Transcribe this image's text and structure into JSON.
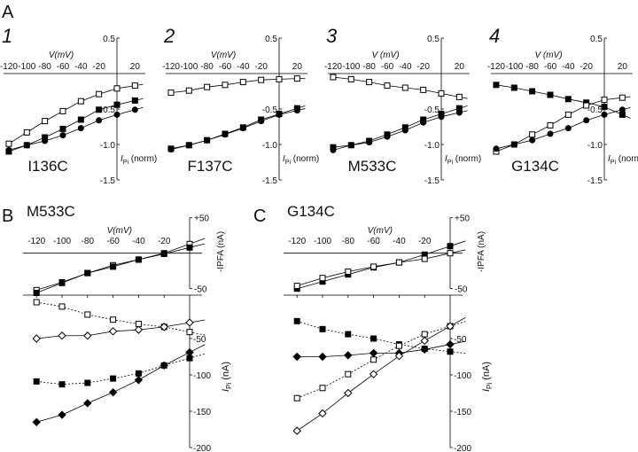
{
  "figure": {
    "panel_letters": {
      "A": "A",
      "B": "B",
      "C": "C"
    },
    "marker_legend_note": ""
  },
  "chart_data": [
    {
      "id": "A1",
      "panel_number": "1",
      "type": "line",
      "title": "I136C",
      "xlabel": "V(mV)",
      "ylabel": "I",
      "ylabel_sub": "Pi",
      "ylabel_unit": " (norm)",
      "x": [
        -120,
        -100,
        -80,
        -60,
        -40,
        -20,
        0,
        20
      ],
      "xtick_labels": [
        "-120",
        "-100",
        "-80",
        "-60",
        "-40",
        "-20",
        "20"
      ],
      "xtick_values": [
        -120,
        -100,
        -80,
        -60,
        -40,
        -20,
        20
      ],
      "ytick_labels": [
        "0.5",
        "-0.5",
        "-1.0",
        "-1.5"
      ],
      "ytick_values": [
        0.5,
        -0.5,
        -1.0,
        -1.5
      ],
      "ylim": [
        -1.5,
        0.5
      ],
      "series": [
        {
          "marker": "open-square",
          "line": "solid",
          "values": [
            -0.99,
            -0.83,
            -0.67,
            -0.53,
            -0.39,
            -0.29,
            -0.21,
            -0.17
          ]
        },
        {
          "marker": "filled-square",
          "line": "solid",
          "values": [
            -1.1,
            -1.01,
            -0.9,
            -0.78,
            -0.65,
            -0.51,
            -0.44,
            -0.38
          ]
        },
        {
          "marker": "filled-circle",
          "line": "solid",
          "values": [
            -1.08,
            -1.01,
            -0.95,
            -0.87,
            -0.77,
            -0.66,
            -0.58,
            -0.51
          ]
        }
      ]
    },
    {
      "id": "A2",
      "panel_number": "2",
      "type": "line",
      "title": "F137C",
      "xlabel": "V(mV)",
      "ylabel": "I",
      "ylabel_sub": "Pi",
      "ylabel_unit": " (norm)",
      "x": [
        -120,
        -100,
        -80,
        -60,
        -40,
        -20,
        0,
        20
      ],
      "xtick_labels": [
        "-120",
        "-100",
        "-80",
        "-60",
        "-40",
        "-20",
        "20"
      ],
      "xtick_values": [
        -120,
        -100,
        -80,
        -60,
        -40,
        -20,
        20
      ],
      "ytick_labels": [
        "0.5",
        "-0.5",
        "-1.0",
        "-1.5"
      ],
      "ytick_values": [
        0.5,
        -0.5,
        -1.0,
        -1.5
      ],
      "ylim": [
        -1.5,
        0.5
      ],
      "series": [
        {
          "marker": "open-square",
          "line": "solid",
          "values": [
            -0.27,
            -0.24,
            -0.19,
            -0.16,
            -0.12,
            -0.09,
            -0.08,
            -0.07
          ]
        },
        {
          "marker": "filled-square",
          "line": "solid",
          "values": [
            -1.06,
            -1.01,
            -0.94,
            -0.85,
            -0.76,
            -0.65,
            -0.57,
            -0.49
          ]
        },
        {
          "marker": "filled-circle",
          "line": "solid",
          "values": [
            -1.07,
            -1.01,
            -0.94,
            -0.86,
            -0.77,
            -0.67,
            -0.58,
            -0.52
          ]
        }
      ]
    },
    {
      "id": "A3",
      "panel_number": "3",
      "type": "line",
      "title": "M533C",
      "xlabel": "V (mV)",
      "ylabel": "I",
      "ylabel_sub": "Pi",
      "ylabel_unit": " (norm)",
      "x": [
        -120,
        -100,
        -80,
        -60,
        -40,
        -20,
        0,
        20
      ],
      "xtick_labels": [
        "-120",
        "-100",
        "-80",
        "-60",
        "-40",
        "-20",
        "20"
      ],
      "xtick_values": [
        -120,
        -100,
        -80,
        -60,
        -40,
        -20,
        20
      ],
      "ytick_labels": [
        "0.5",
        "-0.5",
        "-1.0",
        "-1.5"
      ],
      "ytick_values": [
        0.5,
        -0.5,
        -1.0,
        -1.5
      ],
      "ylim": [
        -1.5,
        0.5
      ],
      "series": [
        {
          "marker": "open-square",
          "line": "solid",
          "values": [
            -0.05,
            -0.08,
            -0.12,
            -0.17,
            -0.2,
            -0.23,
            -0.28,
            -0.33
          ]
        },
        {
          "marker": "filled-square",
          "line": "solid",
          "values": [
            -1.04,
            -1.01,
            -0.95,
            -0.86,
            -0.76,
            -0.65,
            -0.57,
            -0.49
          ]
        },
        {
          "marker": "filled-circle",
          "line": "solid",
          "values": [
            -1.08,
            -1.01,
            -0.97,
            -0.89,
            -0.8,
            -0.69,
            -0.61,
            -0.55
          ]
        }
      ]
    },
    {
      "id": "A4",
      "panel_number": "4",
      "type": "line",
      "title": "G134C",
      "xlabel": "V (mV)",
      "ylabel": "I",
      "ylabel_sub": "Pi",
      "ylabel_unit": " (norm)",
      "x": [
        -120,
        -100,
        -80,
        -60,
        -40,
        -20,
        0,
        20
      ],
      "xtick_labels": [
        "-120",
        "-100",
        "-80",
        "-60",
        "-40",
        "-20",
        "20"
      ],
      "xtick_values": [
        -120,
        -100,
        -80,
        -60,
        -40,
        -20,
        20
      ],
      "ytick_labels": [
        "0.5",
        "-0.5",
        "-1.0",
        "-1.5"
      ],
      "ytick_values": [
        0.5,
        -0.5,
        -1.0,
        -1.5
      ],
      "ylim": [
        -1.5,
        0.5
      ],
      "series": [
        {
          "marker": "filled-square",
          "line": "solid",
          "values": [
            -0.16,
            -0.2,
            -0.25,
            -0.3,
            -0.36,
            -0.41,
            -0.47,
            -0.58
          ]
        },
        {
          "marker": "open-square",
          "line": "solid",
          "values": [
            -1.1,
            -1.0,
            -0.86,
            -0.73,
            -0.58,
            -0.45,
            -0.37,
            -0.34
          ]
        },
        {
          "marker": "filled-circle",
          "line": "solid",
          "values": [
            -1.06,
            -1.0,
            -0.94,
            -0.85,
            -0.77,
            -0.66,
            -0.58,
            -0.51
          ]
        }
      ]
    },
    {
      "id": "B",
      "type": "line",
      "title": "M533C",
      "xlabel": "V(mV)",
      "x": [
        -120,
        -100,
        -80,
        -60,
        -40,
        -20,
        0
      ],
      "xtick_labels": [
        "-120",
        "-100",
        "-80",
        "-60",
        "-40",
        "-20"
      ],
      "xtick_values": [
        -120,
        -100,
        -80,
        -60,
        -40,
        -20
      ],
      "upper": {
        "ylabel": "-IPFA (nA)",
        "ylim": [
          -50,
          50
        ],
        "ytick_labels": [
          "+50",
          "-50"
        ],
        "ytick_values": [
          50,
          -50
        ],
        "series": [
          {
            "marker": "open-square",
            "line": "solid",
            "values": [
              -52,
              -41,
              -28,
              -17,
              -9,
              0,
              13
            ]
          },
          {
            "marker": "filled-square",
            "line": "solid",
            "values": [
              -56,
              -42,
              -28,
              -19,
              -9,
              -1,
              8
            ]
          }
        ]
      },
      "lower": {
        "ylabel": "I",
        "ylabel_sub": "Pi",
        "ylabel_unit": " (nA)",
        "ylim": [
          -200,
          0
        ],
        "ytick_labels": [
          "-50",
          "-100",
          "-150",
          "-200"
        ],
        "ytick_values": [
          -50,
          -100,
          -150,
          -200
        ],
        "series": [
          {
            "marker": "open-square",
            "line": "dotted",
            "values": [
              0,
              -6,
              -17,
              -24,
              -30,
              -34,
              -41
            ]
          },
          {
            "marker": "open-diamond",
            "line": "solid",
            "values": [
              -50,
              -46,
              -46,
              -40,
              -38,
              -34,
              -28
            ]
          },
          {
            "marker": "filled-square",
            "line": "dotted",
            "values": [
              -109,
              -113,
              -111,
              -105,
              -98,
              -87,
              -77
            ]
          },
          {
            "marker": "filled-diamond",
            "line": "solid",
            "values": [
              -165,
              -155,
              -139,
              -124,
              -107,
              -87,
              -69
            ]
          }
        ]
      }
    },
    {
      "id": "C",
      "type": "line",
      "title": "G134C",
      "xlabel": "V(mV)",
      "x": [
        -120,
        -100,
        -80,
        -60,
        -40,
        -20,
        0
      ],
      "xtick_labels": [
        "-120",
        "-100",
        "-80",
        "-60",
        "-40",
        "-20"
      ],
      "xtick_values": [
        -120,
        -100,
        -80,
        -60,
        -40,
        -20
      ],
      "upper": {
        "ylabel": "-IPFA (nA)",
        "ylim": [
          -50,
          50
        ],
        "ytick_labels": [
          "+50",
          "-50"
        ],
        "ytick_values": [
          50,
          -50
        ],
        "series": [
          {
            "marker": "filled-square",
            "line": "solid",
            "values": [
              -50,
              -40,
              -30,
              -20,
              -13,
              -2,
              10
            ]
          },
          {
            "marker": "open-square",
            "line": "solid",
            "values": [
              -46,
              -35,
              -26,
              -19,
              -13,
              -8,
              0
            ]
          }
        ]
      },
      "lower": {
        "ylabel": "I",
        "ylabel_sub": "Pi",
        "ylabel_unit": " (nA)",
        "ylim": [
          -200,
          0
        ],
        "ytick_labels": [
          "-50",
          "-100",
          "-150",
          "-200"
        ],
        "ytick_values": [
          -50,
          -100,
          -150,
          -200
        ],
        "series": [
          {
            "marker": "filled-square",
            "line": "dotted",
            "values": [
              -26,
              -37,
              -44,
              -50,
              -58,
              -64,
              -68
            ]
          },
          {
            "marker": "filled-diamond",
            "line": "solid",
            "values": [
              -75,
              -75,
              -73,
              -70,
              -70,
              -65,
              -58
            ]
          },
          {
            "marker": "open-square",
            "line": "dotted",
            "values": [
              -132,
              -118,
              -99,
              -79,
              -60,
              -44,
              -33
            ]
          },
          {
            "marker": "open-diamond",
            "line": "solid",
            "values": [
              -177,
              -153,
              -125,
              -99,
              -74,
              -53,
              -33
            ]
          }
        ]
      }
    }
  ]
}
